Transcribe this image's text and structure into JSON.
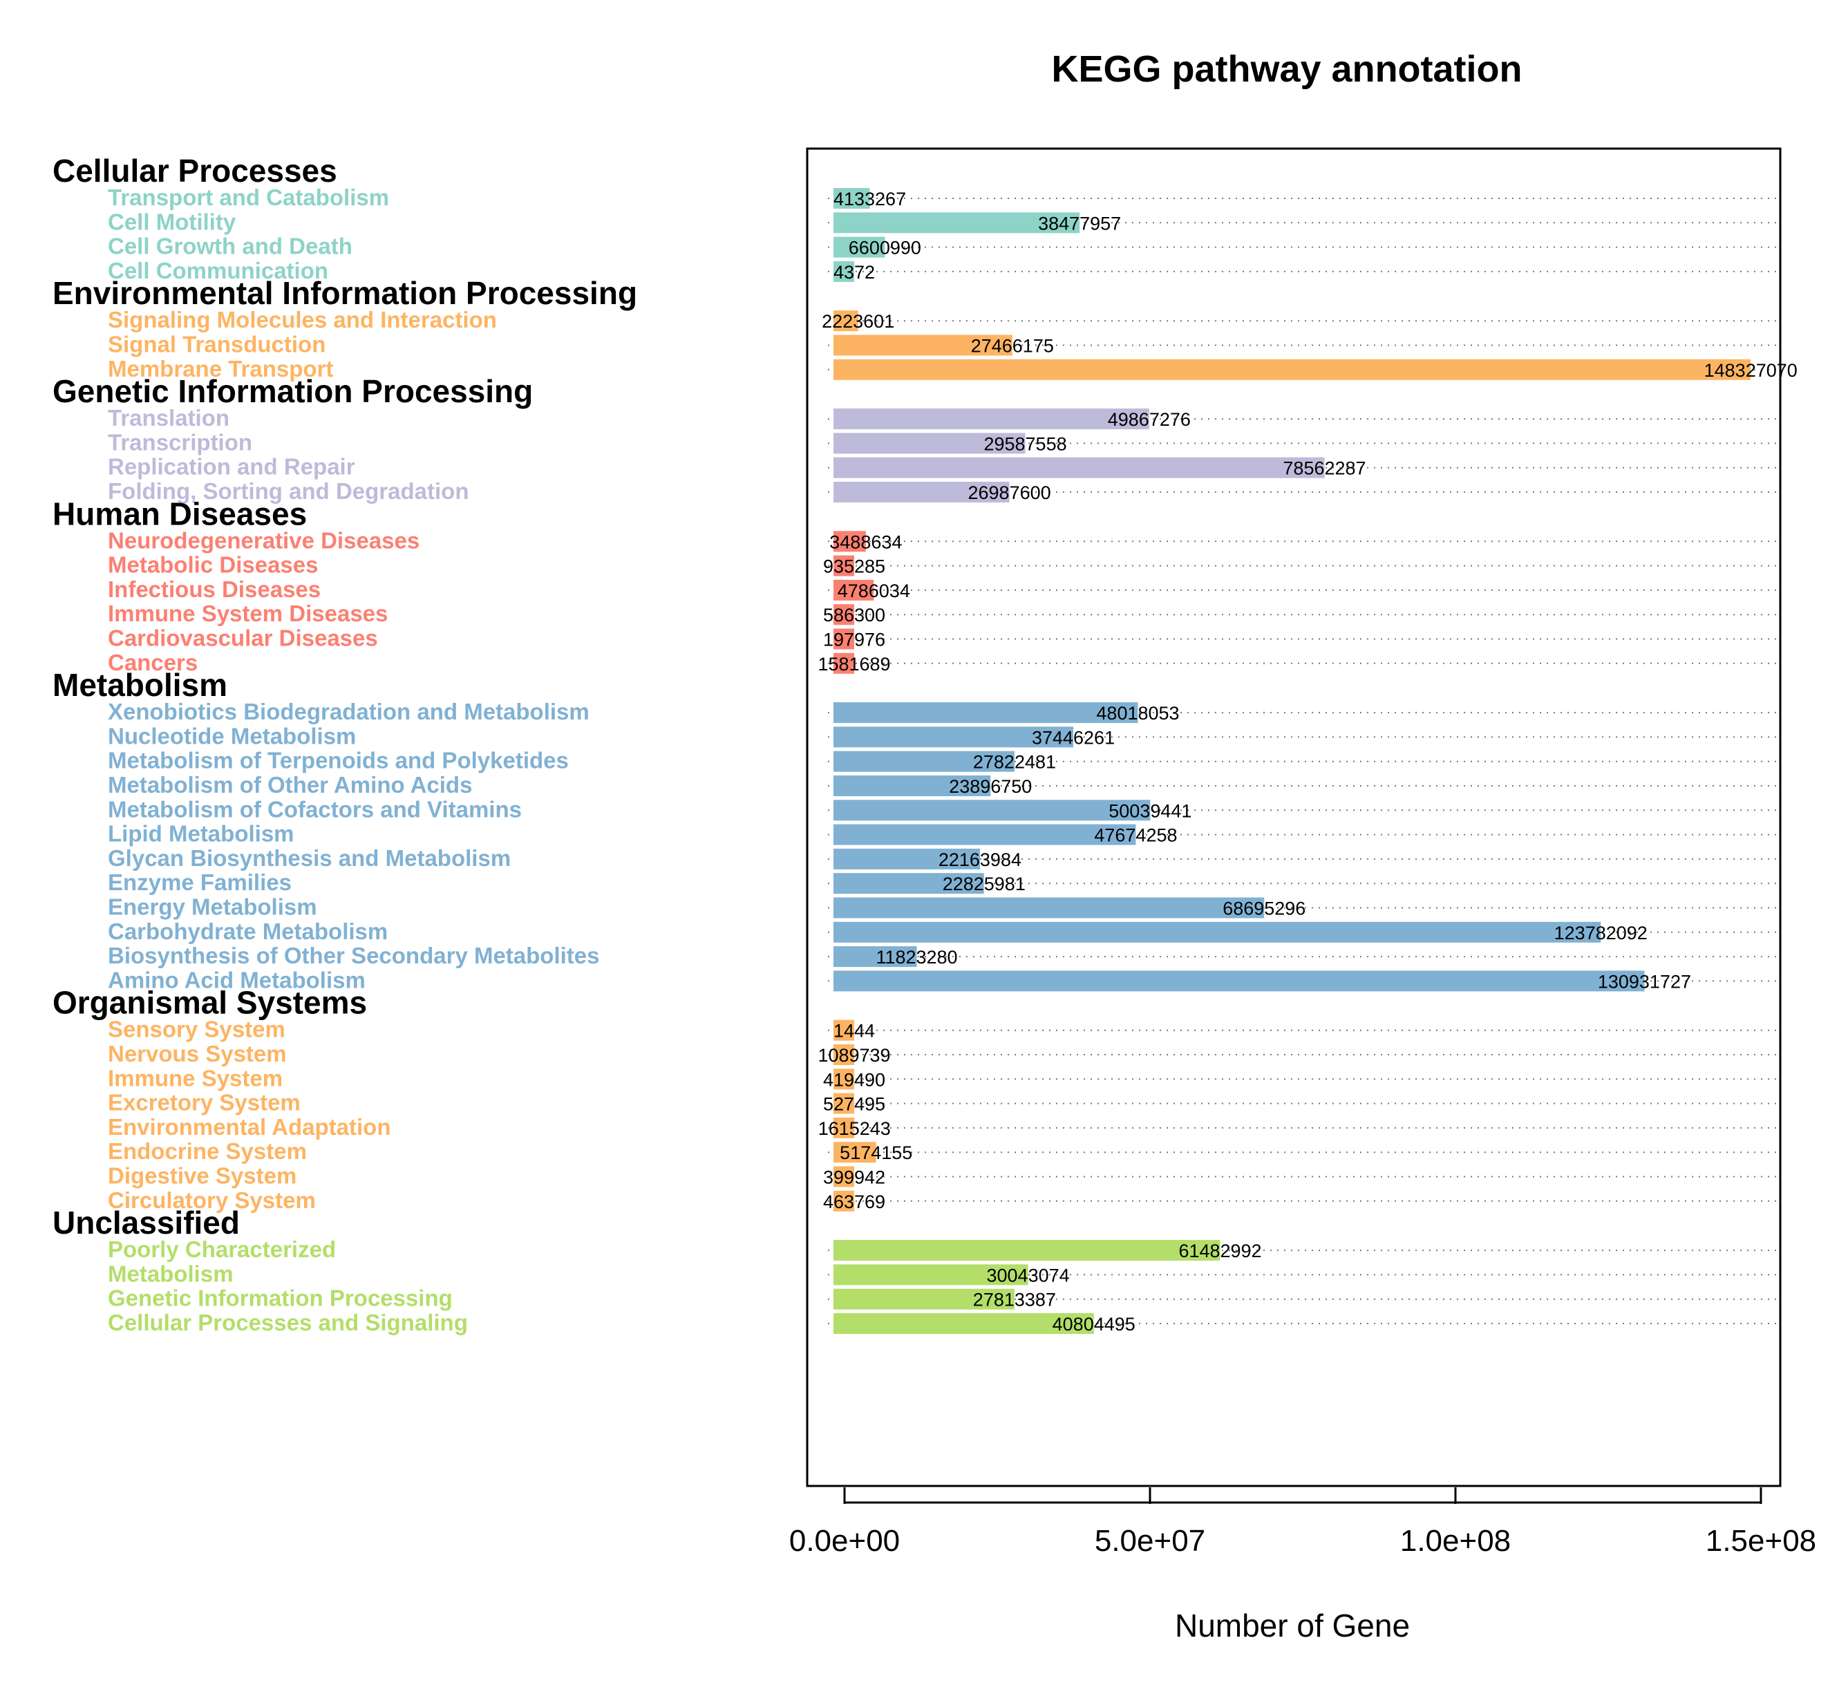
{
  "chart_data": {
    "type": "bar",
    "orientation": "horizontal",
    "title": "KEGG pathway annotation",
    "xlabel": "Number of Gene",
    "ylabel": "",
    "xlim": [
      0,
      150000000
    ],
    "xticks": [
      "0.0e+00",
      "5.0e+07",
      "1.0e+08",
      "1.5e+08"
    ],
    "xtick_values": [
      0,
      50000000,
      100000000,
      150000000
    ],
    "grid": "dotted horizontal",
    "groups": [
      {
        "name": "Cellular Processes",
        "color": "#8dd3c7",
        "items": [
          {
            "label": "Transport and Catabolism",
            "value": 4133267
          },
          {
            "label": "Cell Motility",
            "value": 38477957
          },
          {
            "label": "Cell Growth and Death",
            "value": 6600990
          },
          {
            "label": "Cell Communication",
            "value": 4372
          }
        ]
      },
      {
        "name": "Environmental Information Processing",
        "color": "#fdb462",
        "items": [
          {
            "label": "Signaling Molecules and Interaction",
            "value": 2223601
          },
          {
            "label": "Signal Transduction",
            "value": 27466175
          },
          {
            "label": "Membrane Transport",
            "value": 148327070
          }
        ]
      },
      {
        "name": "Genetic Information Processing",
        "color": "#bebada",
        "items": [
          {
            "label": "Translation",
            "value": 49867276
          },
          {
            "label": "Transcription",
            "value": 29587558
          },
          {
            "label": "Replication and Repair",
            "value": 78562287
          },
          {
            "label": "Folding, Sorting and Degradation",
            "value": 26987600
          }
        ]
      },
      {
        "name": "Human Diseases",
        "color": "#fb8072",
        "items": [
          {
            "label": "Neurodegenerative Diseases",
            "value": 3488634
          },
          {
            "label": "Metabolic Diseases",
            "value": 935285
          },
          {
            "label": "Infectious Diseases",
            "value": 4786034
          },
          {
            "label": "Immune System Diseases",
            "value": 586300
          },
          {
            "label": "Cardiovascular Diseases",
            "value": 197976
          },
          {
            "label": "Cancers",
            "value": 1581689
          }
        ]
      },
      {
        "name": "Metabolism",
        "color": "#80b1d3",
        "items": [
          {
            "label": "Xenobiotics Biodegradation and Metabolism",
            "value": 48018053
          },
          {
            "label": "Nucleotide Metabolism",
            "value": 37446261
          },
          {
            "label": "Metabolism of Terpenoids and Polyketides",
            "value": 27822481
          },
          {
            "label": "Metabolism of Other Amino Acids",
            "value": 23896750
          },
          {
            "label": "Metabolism of Cofactors and Vitamins",
            "value": 50039441
          },
          {
            "label": "Lipid Metabolism",
            "value": 47674258
          },
          {
            "label": "Glycan Biosynthesis and Metabolism",
            "value": 22163984
          },
          {
            "label": "Enzyme Families",
            "value": 22825981
          },
          {
            "label": "Energy Metabolism",
            "value": 68695296
          },
          {
            "label": "Carbohydrate Metabolism",
            "value": 123782092
          },
          {
            "label": "Biosynthesis of Other Secondary Metabolites",
            "value": 11823280
          },
          {
            "label": "Amino Acid Metabolism",
            "value": 130931727
          }
        ]
      },
      {
        "name": "Organismal Systems",
        "color": "#fdb462",
        "items": [
          {
            "label": "Sensory System",
            "value": 1444
          },
          {
            "label": "Nervous System",
            "value": 1089739
          },
          {
            "label": "Immune System",
            "value": 419490
          },
          {
            "label": "Excretory System",
            "value": 527495
          },
          {
            "label": "Environmental Adaptation",
            "value": 1615243
          },
          {
            "label": "Endocrine System",
            "value": 5174155
          },
          {
            "label": "Digestive System",
            "value": 399942
          },
          {
            "label": "Circulatory System",
            "value": 463769
          }
        ]
      },
      {
        "name": "Unclassified",
        "color": "#b3de69",
        "items": [
          {
            "label": "Poorly Characterized",
            "value": 61482992
          },
          {
            "label": "Metabolism",
            "value": 30043074
          },
          {
            "label": "Genetic Information Processing",
            "value": 27813387
          },
          {
            "label": "Cellular Processes and Signaling",
            "value": 40804495
          }
        ]
      }
    ]
  }
}
